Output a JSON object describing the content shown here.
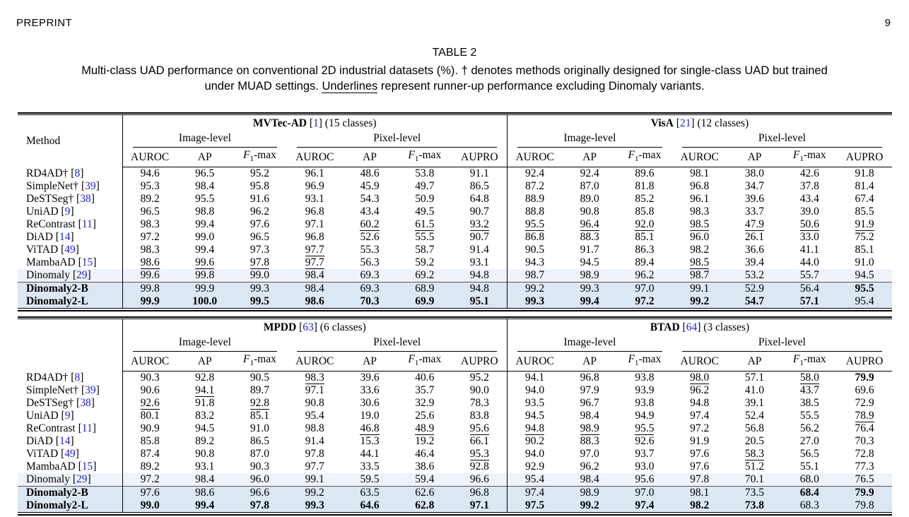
{
  "page": {
    "running_header": "PREPRINT",
    "page_number": "9"
  },
  "caption": {
    "label": "TABLE 2",
    "line1": "Multi-class UAD performance on conventional 2D industrial datasets (%). † denotes methods originally designed for single-class UAD but trained",
    "line2_pre": "under MUAD settings. ",
    "line2_underlined": "Underlines",
    "line2_post": " represent runner-up performance excluding Dinomaly variants."
  },
  "colors": {
    "citation": "#2121d0",
    "row_highlight_light": "#eef3fa",
    "row_highlight_dark": "#dbe7f3"
  },
  "level_headers": [
    "Image-level",
    "Pixel-level"
  ],
  "metric_headers": [
    "AUROC",
    "AP",
    "F1-max",
    "AUROC",
    "AP",
    "F1-max",
    "AUPRO"
  ],
  "tables": [
    {
      "method_header": "Method",
      "datasets": [
        {
          "name": "MVTec-AD",
          "cite": "1",
          "suffix": " (15 classes)"
        },
        {
          "name": "VisA",
          "cite": "21",
          "suffix": " (12 classes)"
        }
      ],
      "rows": [
        {
          "method": "RD4AD†",
          "cite": "8",
          "highlight": 0,
          "bold_method": false,
          "rule_above": false,
          "values": [
            "94.6",
            "96.5",
            "95.2",
            "96.1",
            "48.6",
            "53.8",
            "91.1",
            "92.4",
            "92.4",
            "89.6",
            "98.1",
            "38.0",
            "42.6",
            "91.8"
          ],
          "underline": [],
          "bold": []
        },
        {
          "method": "SimpleNet†",
          "cite": "39",
          "highlight": 0,
          "bold_method": false,
          "rule_above": false,
          "values": [
            "95.3",
            "98.4",
            "95.8",
            "96.9",
            "45.9",
            "49.7",
            "86.5",
            "87.2",
            "87.0",
            "81.8",
            "96.8",
            "34.7",
            "37.8",
            "81.4"
          ],
          "underline": [],
          "bold": []
        },
        {
          "method": "DeSTSeg†",
          "cite": "38",
          "highlight": 0,
          "bold_method": false,
          "rule_above": false,
          "values": [
            "89.2",
            "95.5",
            "91.6",
            "93.1",
            "54.3",
            "50.9",
            "64.8",
            "88.9",
            "89.0",
            "85.2",
            "96.1",
            "39.6",
            "43.4",
            "67.4"
          ],
          "underline": [],
          "bold": []
        },
        {
          "method": "UniAD",
          "cite": "9",
          "highlight": 0,
          "bold_method": false,
          "rule_above": false,
          "values": [
            "96.5",
            "98.8",
            "96.2",
            "96.8",
            "43.4",
            "49.5",
            "90.7",
            "88.8",
            "90.8",
            "85.8",
            "98.3",
            "33.7",
            "39.0",
            "85.5"
          ],
          "underline": [],
          "bold": []
        },
        {
          "method": "ReContrast",
          "cite": "11",
          "highlight": 0,
          "bold_method": false,
          "rule_above": false,
          "values": [
            "98.3",
            "99.4",
            "97.6",
            "97.1",
            "60.2",
            "61.5",
            "93.2",
            "95.5",
            "96.4",
            "92.0",
            "98.5",
            "47.9",
            "50.6",
            "91.9"
          ],
          "underline": [
            4,
            5,
            6,
            7,
            8,
            9,
            10,
            11,
            12,
            13
          ],
          "bold": []
        },
        {
          "method": "DiAD",
          "cite": "14",
          "highlight": 0,
          "bold_method": false,
          "rule_above": false,
          "values": [
            "97.2",
            "99.0",
            "96.5",
            "96.8",
            "52.6",
            "55.5",
            "90.7",
            "86.8",
            "88.3",
            "85.1",
            "96.0",
            "26.1",
            "33.0",
            "75.2"
          ],
          "underline": [],
          "bold": []
        },
        {
          "method": "ViTAD",
          "cite": "49",
          "highlight": 0,
          "bold_method": false,
          "rule_above": false,
          "values": [
            "98.3",
            "99.4",
            "97.3",
            "97.7",
            "55.3",
            "58.7",
            "91.4",
            "90.5",
            "91.7",
            "86.3",
            "98.2",
            "36.6",
            "41.1",
            "85.1"
          ],
          "underline": [
            3
          ],
          "bold": []
        },
        {
          "method": "MambaAD",
          "cite": "15",
          "highlight": 0,
          "bold_method": false,
          "rule_above": false,
          "values": [
            "98.6",
            "99.6",
            "97.8",
            "97.7",
            "56.3",
            "59.2",
            "93.1",
            "94.3",
            "94.5",
            "89.4",
            "98.5",
            "39.4",
            "44.0",
            "91.0"
          ],
          "underline": [
            0,
            1,
            2,
            3,
            10
          ],
          "bold": []
        },
        {
          "method": "Dinomaly",
          "cite": "29",
          "highlight": 1,
          "bold_method": false,
          "rule_above": false,
          "values": [
            "99.6",
            "99.8",
            "99.0",
            "98.4",
            "69.3",
            "69.2",
            "94.8",
            "98.7",
            "98.9",
            "96.2",
            "98.7",
            "53.2",
            "55.7",
            "94.5"
          ],
          "underline": [],
          "bold": []
        },
        {
          "method": "Dinomaly2-B",
          "cite": "",
          "highlight": 2,
          "bold_method": true,
          "rule_above": true,
          "values": [
            "99.8",
            "99.9",
            "99.3",
            "98.4",
            "69.3",
            "68.9",
            "94.8",
            "99.2",
            "99.3",
            "97.0",
            "99.1",
            "52.9",
            "56.4",
            "95.5"
          ],
          "underline": [],
          "bold": [
            13
          ]
        },
        {
          "method": "Dinomaly2-L",
          "cite": "",
          "highlight": 2,
          "bold_method": true,
          "rule_above": false,
          "values": [
            "99.9",
            "100.0",
            "99.5",
            "98.6",
            "70.3",
            "69.9",
            "95.1",
            "99.3",
            "99.4",
            "97.2",
            "99.2",
            "54.7",
            "57.1",
            "95.4"
          ],
          "underline": [],
          "bold": [
            0,
            1,
            2,
            3,
            4,
            5,
            6,
            7,
            8,
            9,
            10,
            11,
            12
          ]
        }
      ]
    },
    {
      "method_header": "",
      "datasets": [
        {
          "name": "MPDD",
          "cite": "63",
          "suffix": " (6 classes)"
        },
        {
          "name": "BTAD",
          "cite": "64",
          "suffix": " (3 classes)"
        }
      ],
      "rows": [
        {
          "method": "RD4AD†",
          "cite": "8",
          "highlight": 0,
          "bold_method": false,
          "rule_above": false,
          "values": [
            "90.3",
            "92.8",
            "90.5",
            "98.3",
            "39.6",
            "40.6",
            "95.2",
            "94.1",
            "96.8",
            "93.8",
            "98.0",
            "57.1",
            "58.0",
            "79.9"
          ],
          "underline": [
            3,
            10,
            12
          ],
          "bold": [
            13
          ]
        },
        {
          "method": "SimpleNet†",
          "cite": "39",
          "highlight": 0,
          "bold_method": false,
          "rule_above": false,
          "values": [
            "90.6",
            "94.1",
            "89.7",
            "97.1",
            "33.6",
            "35.7",
            "90.0",
            "94.0",
            "97.9",
            "93.9",
            "96.2",
            "41.0",
            "43.7",
            "69.6"
          ],
          "underline": [
            1
          ],
          "bold": []
        },
        {
          "method": "DeSTSeg†",
          "cite": "38",
          "highlight": 0,
          "bold_method": false,
          "rule_above": false,
          "values": [
            "92.6",
            "91.8",
            "92.8",
            "90.8",
            "30.6",
            "32.9",
            "78.3",
            "93.5",
            "96.7",
            "93.8",
            "94.8",
            "39.1",
            "38.5",
            "72.9"
          ],
          "underline": [
            0,
            2
          ],
          "bold": []
        },
        {
          "method": "UniAD",
          "cite": "9",
          "highlight": 0,
          "bold_method": false,
          "rule_above": false,
          "values": [
            "80.1",
            "83.2",
            "85.1",
            "95.4",
            "19.0",
            "25.6",
            "83.8",
            "94.5",
            "98.4",
            "94.9",
            "97.4",
            "52.4",
            "55.5",
            "78.9"
          ],
          "underline": [
            13
          ],
          "bold": []
        },
        {
          "method": "ReContrast",
          "cite": "11",
          "highlight": 0,
          "bold_method": false,
          "rule_above": false,
          "values": [
            "90.9",
            "94.5",
            "91.0",
            "98.8",
            "46.8",
            "48.9",
            "95.6",
            "94.8",
            "98.9",
            "95.5",
            "97.2",
            "56.8",
            "56.2",
            "76.4"
          ],
          "underline": [
            4,
            5,
            6,
            7,
            8,
            9
          ],
          "bold": []
        },
        {
          "method": "DiAD",
          "cite": "14",
          "highlight": 0,
          "bold_method": false,
          "rule_above": false,
          "values": [
            "85.8",
            "89.2",
            "86.5",
            "91.4",
            "15.3",
            "19.2",
            "66.1",
            "90.2",
            "88.3",
            "92.6",
            "91.9",
            "20.5",
            "27.0",
            "70.3"
          ],
          "underline": [],
          "bold": []
        },
        {
          "method": "ViTAD",
          "cite": "49",
          "highlight": 0,
          "bold_method": false,
          "rule_above": false,
          "values": [
            "87.4",
            "90.8",
            "87.0",
            "97.8",
            "44.1",
            "46.4",
            "95.3",
            "94.0",
            "97.0",
            "93.7",
            "97.6",
            "58.3",
            "56.5",
            "72.8"
          ],
          "underline": [
            6,
            11
          ],
          "bold": []
        },
        {
          "method": "MambaAD",
          "cite": "15",
          "highlight": 0,
          "bold_method": false,
          "rule_above": false,
          "values": [
            "89.2",
            "93.1",
            "90.3",
            "97.7",
            "33.5",
            "38.6",
            "92.8",
            "92.9",
            "96.2",
            "93.0",
            "97.6",
            "51.2",
            "55.1",
            "77.3"
          ],
          "underline": [],
          "bold": []
        },
        {
          "method": "Dinomaly",
          "cite": "29",
          "highlight": 1,
          "bold_method": false,
          "rule_above": false,
          "values": [
            "97.2",
            "98.4",
            "96.0",
            "99.1",
            "59.5",
            "59.4",
            "96.6",
            "95.4",
            "98.4",
            "95.6",
            "97.8",
            "70.1",
            "68.0",
            "76.5"
          ],
          "underline": [],
          "bold": []
        },
        {
          "method": "Dinomaly2-B",
          "cite": "",
          "highlight": 2,
          "bold_method": true,
          "rule_above": true,
          "values": [
            "97.6",
            "98.6",
            "96.6",
            "99.2",
            "63.5",
            "62.6",
            "96.8",
            "97.4",
            "98.9",
            "97.0",
            "98.1",
            "73.5",
            "68.4",
            "79.9"
          ],
          "underline": [],
          "bold": [
            12,
            13
          ]
        },
        {
          "method": "Dinomaly2-L",
          "cite": "",
          "highlight": 2,
          "bold_method": true,
          "rule_above": false,
          "values": [
            "99.0",
            "99.4",
            "97.8",
            "99.3",
            "64.6",
            "62.8",
            "97.1",
            "97.5",
            "99.2",
            "97.4",
            "98.2",
            "73.8",
            "68.3",
            "79.8"
          ],
          "underline": [],
          "bold": [
            0,
            1,
            2,
            3,
            4,
            5,
            6,
            7,
            8,
            9,
            10,
            11
          ]
        }
      ]
    }
  ]
}
